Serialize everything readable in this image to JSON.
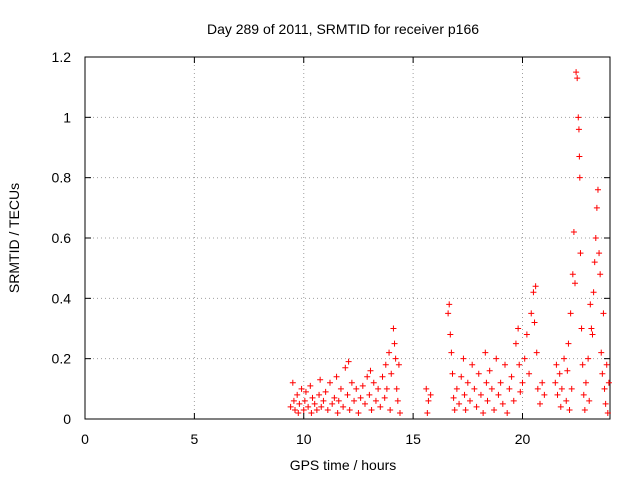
{
  "chart_data": {
    "type": "scatter",
    "title": "Day 289 of 2011, SRMTID for receiver p166",
    "xlabel": "GPS time / hours",
    "ylabel": "SRMTID / TECUs",
    "xlim": [
      0,
      24
    ],
    "ylim": [
      0,
      1.2
    ],
    "xticks": [
      0,
      5,
      10,
      15,
      20
    ],
    "xtick_labels": [
      "0",
      "5",
      "10",
      "15",
      "20"
    ],
    "yticks": [
      0,
      0.2,
      0.4,
      0.6,
      0.8,
      1,
      1.2
    ],
    "ytick_labels": [
      "0",
      "0.2",
      "0.4",
      "0.6",
      "0.8",
      "1",
      "1.2"
    ],
    "grid": true,
    "marker": "+",
    "series": [
      {
        "name": "SRMTID",
        "color": "#ff0000",
        "points": [
          [
            9.4,
            0.04
          ],
          [
            9.5,
            0.12
          ],
          [
            9.55,
            0.06
          ],
          [
            9.6,
            0.03
          ],
          [
            9.7,
            0.08
          ],
          [
            9.75,
            0.02
          ],
          [
            9.8,
            0.05
          ],
          [
            9.9,
            0.1
          ],
          [
            10.0,
            0.03
          ],
          [
            10.05,
            0.06
          ],
          [
            10.1,
            0.09
          ],
          [
            10.2,
            0.04
          ],
          [
            10.3,
            0.11
          ],
          [
            10.35,
            0.02
          ],
          [
            10.4,
            0.07
          ],
          [
            10.5,
            0.05
          ],
          [
            10.6,
            0.03
          ],
          [
            10.7,
            0.08
          ],
          [
            10.75,
            0.13
          ],
          [
            10.8,
            0.04
          ],
          [
            10.9,
            0.06
          ],
          [
            11.0,
            0.09
          ],
          [
            11.1,
            0.03
          ],
          [
            11.2,
            0.12
          ],
          [
            11.3,
            0.05
          ],
          [
            11.4,
            0.07
          ],
          [
            11.5,
            0.14
          ],
          [
            11.55,
            0.02
          ],
          [
            11.6,
            0.06
          ],
          [
            11.7,
            0.1
          ],
          [
            11.8,
            0.04
          ],
          [
            11.9,
            0.17
          ],
          [
            12.0,
            0.08
          ],
          [
            12.05,
            0.19
          ],
          [
            12.1,
            0.03
          ],
          [
            12.2,
            0.12
          ],
          [
            12.3,
            0.06
          ],
          [
            12.4,
            0.1
          ],
          [
            12.5,
            0.02
          ],
          [
            12.6,
            0.07
          ],
          [
            12.7,
            0.11
          ],
          [
            12.8,
            0.05
          ],
          [
            12.9,
            0.14
          ],
          [
            13.0,
            0.08
          ],
          [
            13.05,
            0.16
          ],
          [
            13.1,
            0.03
          ],
          [
            13.2,
            0.12
          ],
          [
            13.3,
            0.06
          ],
          [
            13.4,
            0.1
          ],
          [
            13.5,
            0.04
          ],
          [
            13.6,
            0.14
          ],
          [
            13.7,
            0.07
          ],
          [
            13.75,
            0.18
          ],
          [
            13.8,
            0.1
          ],
          [
            13.9,
            0.22
          ],
          [
            13.95,
            0.03
          ],
          [
            14.0,
            0.15
          ],
          [
            14.1,
            0.3
          ],
          [
            14.15,
            0.25
          ],
          [
            14.2,
            0.2
          ],
          [
            14.25,
            0.1
          ],
          [
            14.3,
            0.06
          ],
          [
            14.35,
            0.18
          ],
          [
            14.4,
            0.02
          ],
          [
            15.6,
            0.1
          ],
          [
            15.65,
            0.02
          ],
          [
            15.7,
            0.06
          ],
          [
            15.8,
            0.08
          ],
          [
            16.6,
            0.35
          ],
          [
            16.65,
            0.38
          ],
          [
            16.7,
            0.28
          ],
          [
            16.75,
            0.22
          ],
          [
            16.8,
            0.15
          ],
          [
            16.85,
            0.07
          ],
          [
            16.9,
            0.03
          ],
          [
            17.0,
            0.1
          ],
          [
            17.1,
            0.05
          ],
          [
            17.2,
            0.14
          ],
          [
            17.3,
            0.2
          ],
          [
            17.35,
            0.08
          ],
          [
            17.4,
            0.03
          ],
          [
            17.5,
            0.12
          ],
          [
            17.6,
            0.06
          ],
          [
            17.7,
            0.18
          ],
          [
            17.8,
            0.1
          ],
          [
            17.9,
            0.04
          ],
          [
            18.0,
            0.15
          ],
          [
            18.1,
            0.08
          ],
          [
            18.2,
            0.02
          ],
          [
            18.3,
            0.22
          ],
          [
            18.35,
            0.12
          ],
          [
            18.4,
            0.06
          ],
          [
            18.5,
            0.16
          ],
          [
            18.6,
            0.1
          ],
          [
            18.7,
            0.03
          ],
          [
            18.8,
            0.2
          ],
          [
            18.9,
            0.08
          ],
          [
            19.0,
            0.12
          ],
          [
            19.1,
            0.05
          ],
          [
            19.2,
            0.18
          ],
          [
            19.3,
            0.02
          ],
          [
            19.4,
            0.1
          ],
          [
            19.5,
            0.14
          ],
          [
            19.6,
            0.06
          ],
          [
            19.7,
            0.25
          ],
          [
            19.8,
            0.3
          ],
          [
            19.85,
            0.18
          ],
          [
            19.9,
            0.09
          ],
          [
            20.0,
            0.12
          ],
          [
            20.1,
            0.2
          ],
          [
            20.2,
            0.28
          ],
          [
            20.3,
            0.15
          ],
          [
            20.4,
            0.35
          ],
          [
            20.5,
            0.42
          ],
          [
            20.55,
            0.32
          ],
          [
            20.6,
            0.44
          ],
          [
            20.65,
            0.22
          ],
          [
            20.7,
            0.1
          ],
          [
            20.8,
            0.05
          ],
          [
            20.9,
            0.12
          ],
          [
            21.0,
            0.08
          ],
          [
            21.5,
            0.12
          ],
          [
            21.55,
            0.18
          ],
          [
            21.6,
            0.08
          ],
          [
            21.7,
            0.15
          ],
          [
            21.75,
            0.04
          ],
          [
            21.8,
            0.1
          ],
          [
            21.9,
            0.2
          ],
          [
            22.0,
            0.06
          ],
          [
            22.05,
            0.16
          ],
          [
            22.1,
            0.25
          ],
          [
            22.15,
            0.03
          ],
          [
            22.2,
            0.35
          ],
          [
            22.25,
            0.1
          ],
          [
            22.3,
            0.48
          ],
          [
            22.35,
            0.62
          ],
          [
            22.4,
            0.45
          ],
          [
            22.45,
            1.15
          ],
          [
            22.5,
            1.13
          ],
          [
            22.55,
            1.0
          ],
          [
            22.58,
            0.96
          ],
          [
            22.6,
            0.87
          ],
          [
            22.62,
            0.8
          ],
          [
            22.65,
            0.55
          ],
          [
            22.7,
            0.3
          ],
          [
            22.75,
            0.18
          ],
          [
            22.8,
            0.08
          ],
          [
            22.85,
            0.03
          ],
          [
            22.9,
            0.12
          ],
          [
            23.0,
            0.2
          ],
          [
            23.05,
            0.06
          ],
          [
            23.1,
            0.38
          ],
          [
            23.15,
            0.3
          ],
          [
            23.2,
            0.28
          ],
          [
            23.25,
            0.42
          ],
          [
            23.3,
            0.52
          ],
          [
            23.35,
            0.6
          ],
          [
            23.4,
            0.7
          ],
          [
            23.45,
            0.76
          ],
          [
            23.5,
            0.55
          ],
          [
            23.55,
            0.48
          ],
          [
            23.6,
            0.22
          ],
          [
            23.65,
            0.15
          ],
          [
            23.7,
            0.35
          ],
          [
            23.75,
            0.1
          ],
          [
            23.8,
            0.05
          ],
          [
            23.85,
            0.18
          ],
          [
            23.9,
            0.02
          ],
          [
            23.95,
            0.12
          ]
        ]
      }
    ]
  }
}
